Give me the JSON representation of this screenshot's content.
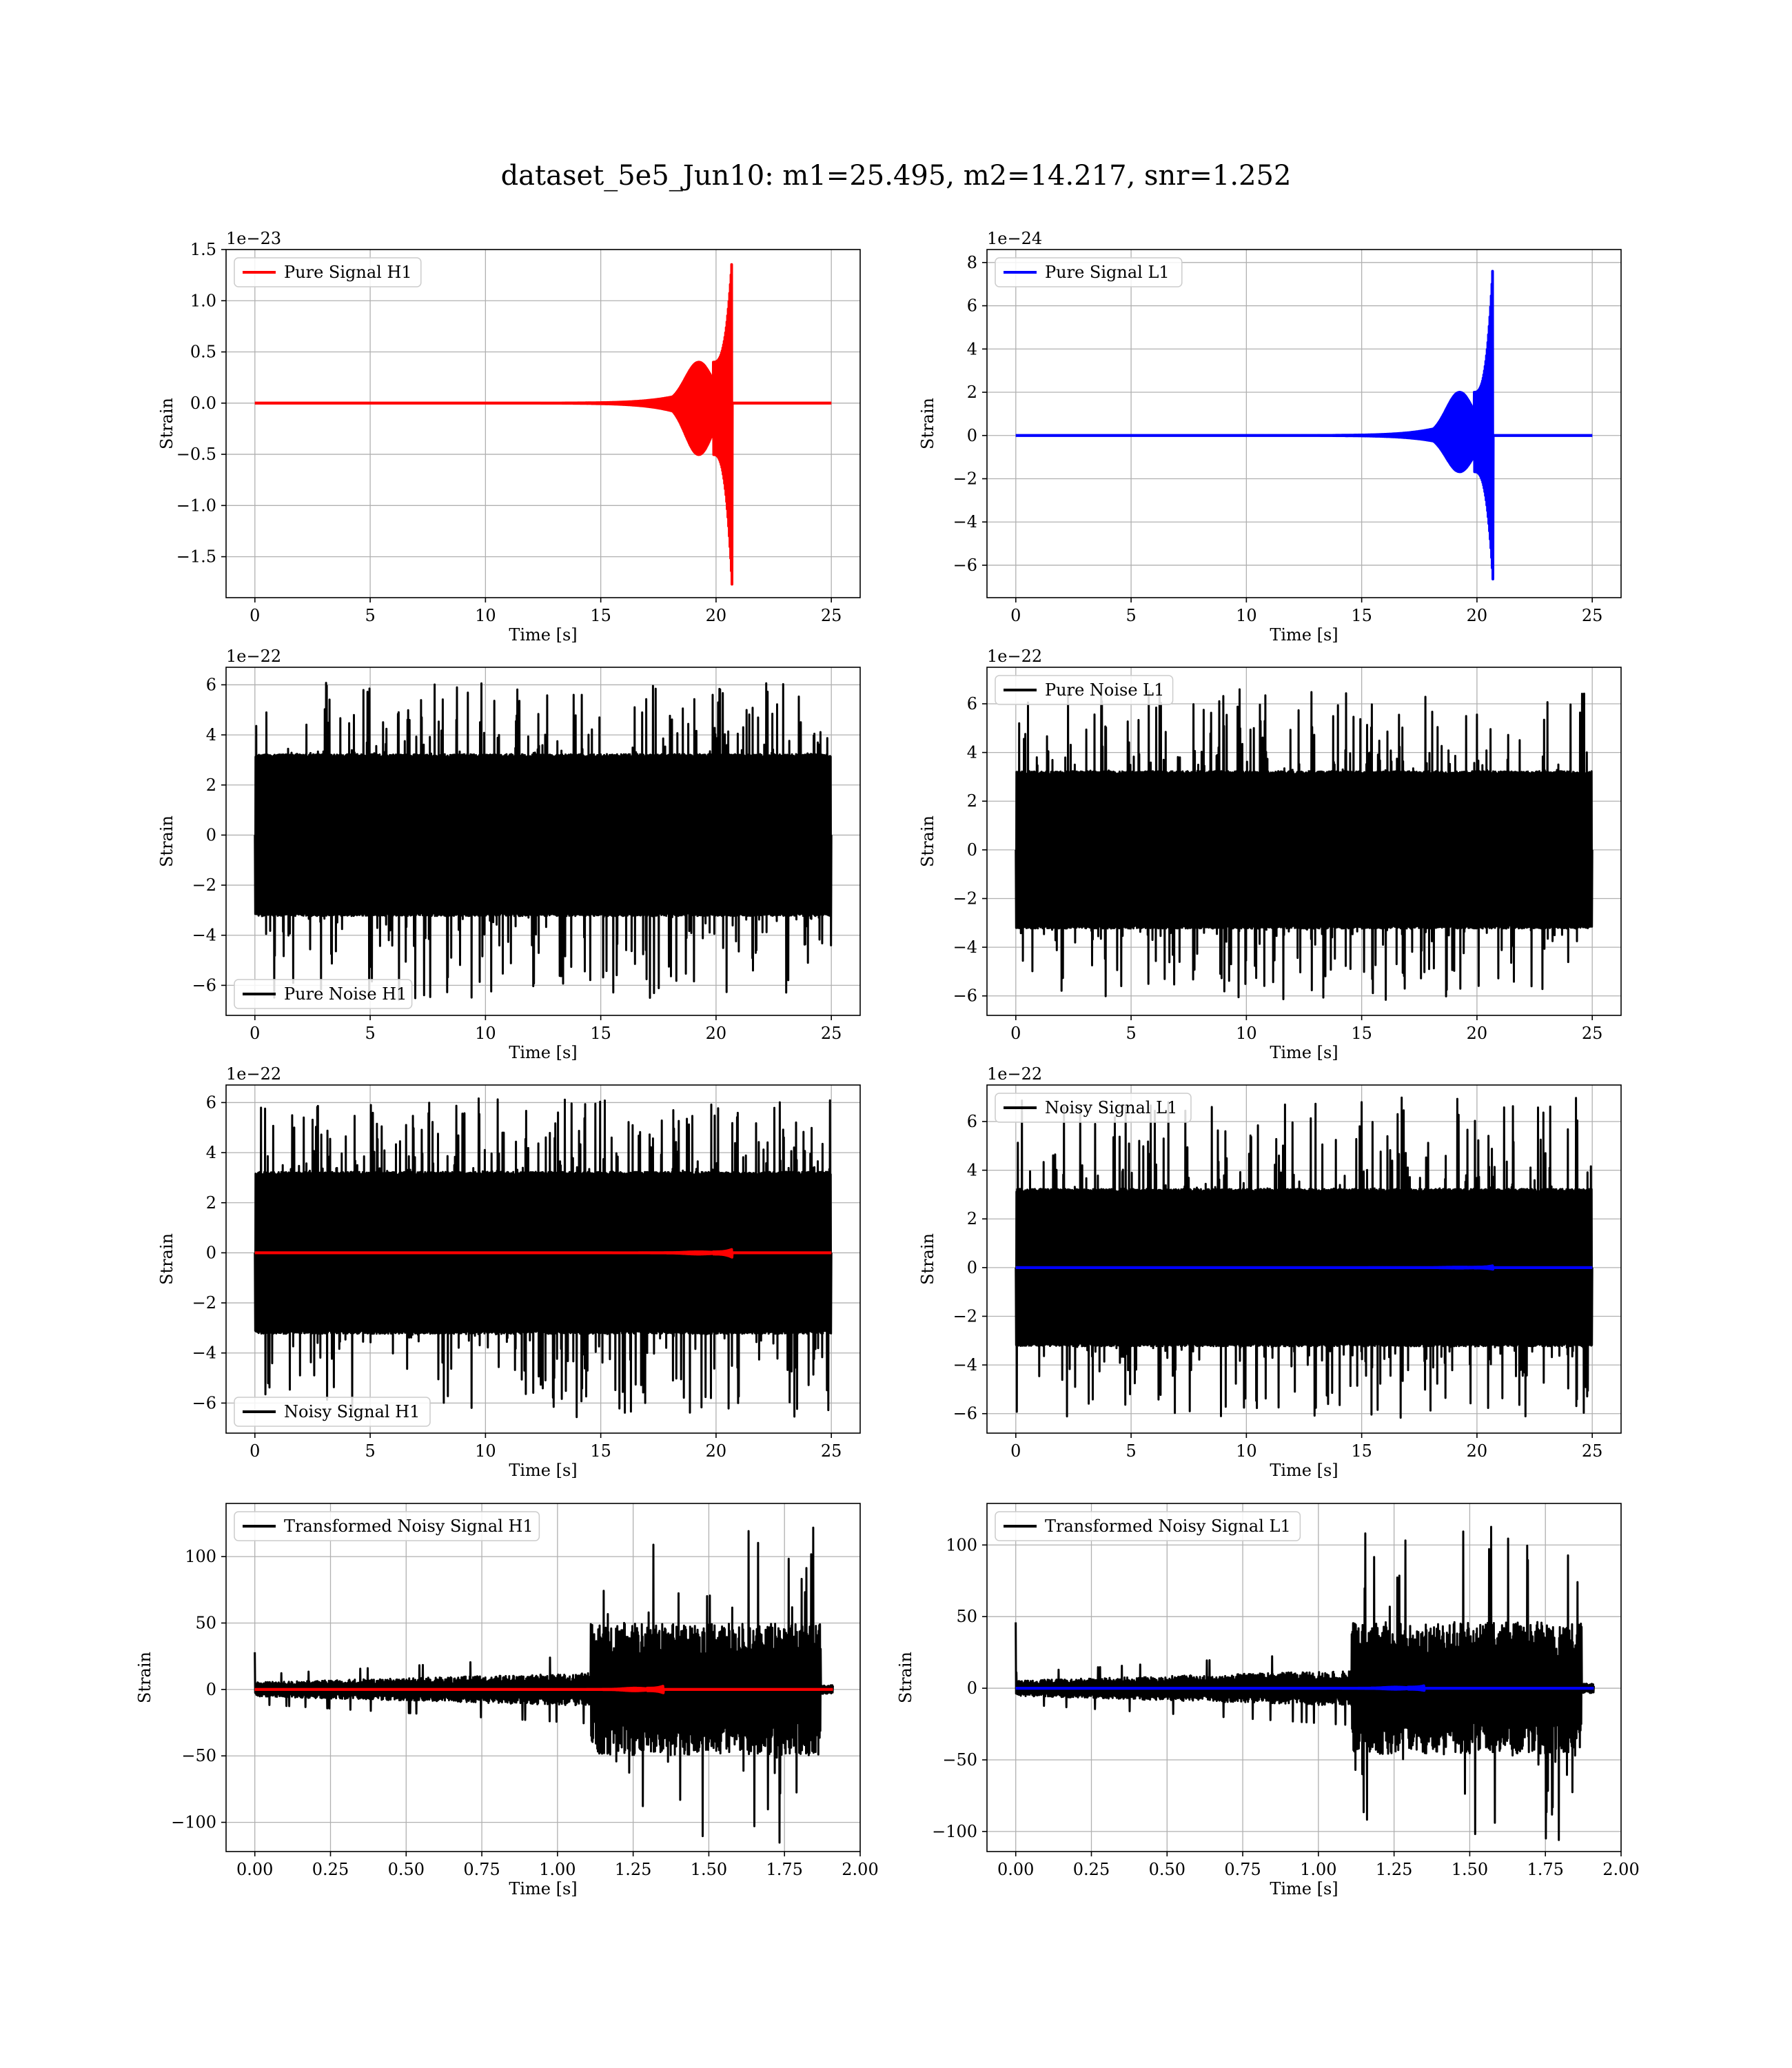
{
  "figure_title": "dataset_5e5_Jun10: m1=25.495, m2=14.217, snr=1.252",
  "colors": {
    "h1_signal": "#ff0000",
    "l1_signal": "#0000ff",
    "noise": "#000000",
    "grid": "#b0b0b0"
  },
  "chart_data": [
    {
      "type": "line",
      "panel": "top-left",
      "title": "",
      "xlabel": "Time [s]",
      "ylabel": "Strain",
      "offset_text": "1e−23",
      "xlim": [
        -1.25,
        26.25
      ],
      "ylim": [
        -1.9,
        1.5
      ],
      "xticks": [
        0,
        5,
        10,
        15,
        20,
        25
      ],
      "yticks": [
        -1.5,
        -1.0,
        -0.5,
        0.0,
        0.5,
        1.0,
        1.5
      ],
      "ytick_labels": [
        "−1.5",
        "−1.0",
        "−0.5",
        "0.0",
        "0.5",
        "1.0",
        "1.5"
      ],
      "grid": true,
      "legend_loc": "upper left",
      "series": [
        {
          "name": "Pure Signal H1",
          "kind": "chirp",
          "color": "#ff0000",
          "t_start": 0,
          "t_end": 25,
          "t_merger": 20.7,
          "amp_early": 0.4,
          "amp_peak_pos": 1.44,
          "amp_peak_neg": -1.81
        }
      ]
    },
    {
      "type": "line",
      "panel": "top-right",
      "title": "",
      "xlabel": "Time [s]",
      "ylabel": "Strain",
      "offset_text": "1e−24",
      "xlim": [
        -1.25,
        26.25
      ],
      "ylim": [
        -7.5,
        8.6
      ],
      "xticks": [
        0,
        5,
        10,
        15,
        20,
        25
      ],
      "yticks": [
        -6,
        -4,
        -2,
        0,
        2,
        4,
        6,
        8
      ],
      "ytick_labels": [
        "−6",
        "−4",
        "−2",
        "0",
        "2",
        "4",
        "6",
        "8"
      ],
      "grid": true,
      "legend_loc": "upper left",
      "series": [
        {
          "name": "Pure Signal L1",
          "kind": "chirp",
          "color": "#0000ff",
          "t_start": 0,
          "t_end": 25,
          "t_merger": 20.7,
          "amp_early": 2.0,
          "amp_peak_pos": 8.1,
          "amp_peak_neg": -6.8
        }
      ]
    },
    {
      "type": "line",
      "panel": "row2-left",
      "title": "",
      "xlabel": "Time [s]",
      "ylabel": "Strain",
      "offset_text": "1e−22",
      "xlim": [
        -1.25,
        26.25
      ],
      "ylim": [
        -7.2,
        6.7
      ],
      "xticks": [
        0,
        5,
        10,
        15,
        20,
        25
      ],
      "yticks": [
        -6,
        -4,
        -2,
        0,
        2,
        4,
        6
      ],
      "ytick_labels": [
        "−6",
        "−4",
        "−2",
        "0",
        "2",
        "4",
        "6"
      ],
      "grid": true,
      "legend_loc": "lower left",
      "series": [
        {
          "name": "Pure Noise H1",
          "kind": "noise",
          "color": "#000000",
          "t_start": 0,
          "t_end": 25,
          "core": 3.2,
          "max": 6.2,
          "min": -6.6
        }
      ]
    },
    {
      "type": "line",
      "panel": "row2-right",
      "title": "",
      "xlabel": "Time [s]",
      "ylabel": "Strain",
      "offset_text": "1e−22",
      "xlim": [
        -1.25,
        26.25
      ],
      "ylim": [
        -6.8,
        7.5
      ],
      "xticks": [
        0,
        5,
        10,
        15,
        20,
        25
      ],
      "yticks": [
        -6,
        -4,
        -2,
        0,
        2,
        4,
        6
      ],
      "ytick_labels": [
        "−6",
        "−4",
        "−2",
        "0",
        "2",
        "4",
        "6"
      ],
      "grid": true,
      "legend_loc": "upper left",
      "series": [
        {
          "name": "Pure Noise L1",
          "kind": "noise",
          "color": "#000000",
          "t_start": 0,
          "t_end": 25,
          "core": 3.2,
          "max": 7.0,
          "min": -6.2
        }
      ]
    },
    {
      "type": "line",
      "panel": "row3-left",
      "title": "",
      "xlabel": "Time [s]",
      "ylabel": "Strain",
      "offset_text": "1e−22",
      "xlim": [
        -1.25,
        26.25
      ],
      "ylim": [
        -7.2,
        6.7
      ],
      "xticks": [
        0,
        5,
        10,
        15,
        20,
        25
      ],
      "yticks": [
        -6,
        -4,
        -2,
        0,
        2,
        4,
        6
      ],
      "ytick_labels": [
        "−6",
        "−4",
        "−2",
        "0",
        "2",
        "4",
        "6"
      ],
      "grid": true,
      "legend_loc": "lower left",
      "series": [
        {
          "name": "Noisy Signal H1",
          "kind": "noise",
          "color": "#000000",
          "t_start": 0,
          "t_end": 25,
          "core": 3.2,
          "max": 6.2,
          "min": -6.6
        },
        {
          "kind": "chirp",
          "color": "#ff0000",
          "t_start": 0,
          "t_end": 25,
          "t_merger": 20.7,
          "amp_early": 0.04,
          "amp_peak_pos": 0.14,
          "amp_peak_neg": -0.18
        }
      ]
    },
    {
      "type": "line",
      "panel": "row3-right",
      "title": "",
      "xlabel": "Time [s]",
      "ylabel": "Strain",
      "offset_text": "1e−22",
      "xlim": [
        -1.25,
        26.25
      ],
      "ylim": [
        -6.8,
        7.5
      ],
      "xticks": [
        0,
        5,
        10,
        15,
        20,
        25
      ],
      "yticks": [
        -6,
        -4,
        -2,
        0,
        2,
        4,
        6
      ],
      "ytick_labels": [
        "−6",
        "−4",
        "−2",
        "0",
        "2",
        "4",
        "6"
      ],
      "grid": true,
      "legend_loc": "upper left",
      "series": [
        {
          "name": "Noisy Signal L1",
          "kind": "noise",
          "color": "#000000",
          "t_start": 0,
          "t_end": 25,
          "core": 3.2,
          "max": 7.0,
          "min": -6.2
        },
        {
          "kind": "chirp",
          "color": "#0000ff",
          "t_start": 0,
          "t_end": 25,
          "t_merger": 20.7,
          "amp_early": 0.02,
          "amp_peak_pos": 0.08,
          "amp_peak_neg": -0.07
        }
      ]
    },
    {
      "type": "line",
      "panel": "bottom-left",
      "title": "",
      "xlabel": "Time [s]",
      "ylabel": "Strain",
      "offset_text": "",
      "xlim": [
        -0.095,
        2.0
      ],
      "ylim": [
        -122,
        140
      ],
      "xticks": [
        0,
        0.25,
        0.5,
        0.75,
        1.0,
        1.25,
        1.5,
        1.75,
        2.0
      ],
      "xtick_labels": [
        "0.00",
        "0.25",
        "0.50",
        "0.75",
        "1.00",
        "1.25",
        "1.50",
        "1.75",
        "2.00"
      ],
      "yticks": [
        -100,
        -50,
        0,
        50,
        100
      ],
      "ytick_labels": [
        "−100",
        "−50",
        "0",
        "50",
        "100"
      ],
      "grid": true,
      "legend_loc": "upper left",
      "series": [
        {
          "name": "Transformed Noisy Signal H1",
          "kind": "transformed",
          "color": "#000000",
          "t_start": 0,
          "t_end": 1.91,
          "t_jump": 1.11,
          "t_drop": 1.87,
          "early_amp": 8,
          "late_amp": 45,
          "max": 122,
          "min": -120,
          "spike0": 28
        },
        {
          "kind": "chirp",
          "color": "#ff0000",
          "t_start": 0,
          "t_end": 1.91,
          "t_merger": 1.35,
          "amp_early": 1.0,
          "amp_peak_pos": 2.6,
          "amp_peak_neg": -2.6
        }
      ]
    },
    {
      "type": "line",
      "panel": "bottom-right",
      "title": "",
      "xlabel": "Time [s]",
      "ylabel": "Strain",
      "offset_text": "",
      "xlim": [
        -0.095,
        2.0
      ],
      "ylim": [
        -114,
        129
      ],
      "xticks": [
        0,
        0.25,
        0.5,
        0.75,
        1.0,
        1.25,
        1.5,
        1.75,
        2.0
      ],
      "xtick_labels": [
        "0.00",
        "0.25",
        "0.50",
        "0.75",
        "1.00",
        "1.25",
        "1.50",
        "1.75",
        "2.00"
      ],
      "yticks": [
        -100,
        -50,
        0,
        50,
        100
      ],
      "ytick_labels": [
        "−100",
        "−50",
        "0",
        "50",
        "100"
      ],
      "grid": true,
      "legend_loc": "upper left",
      "series": [
        {
          "name": "Transformed Noisy Signal L1",
          "kind": "transformed",
          "color": "#000000",
          "t_start": 0,
          "t_end": 1.91,
          "t_jump": 1.11,
          "t_drop": 1.87,
          "early_amp": 8,
          "late_amp": 42,
          "max": 118,
          "min": -108,
          "spike0": 46
        },
        {
          "kind": "chirp",
          "color": "#0000ff",
          "t_start": 0,
          "t_end": 1.91,
          "t_merger": 1.35,
          "amp_early": 0.8,
          "amp_peak_pos": 1.8,
          "amp_peak_neg": -1.6
        }
      ]
    }
  ]
}
